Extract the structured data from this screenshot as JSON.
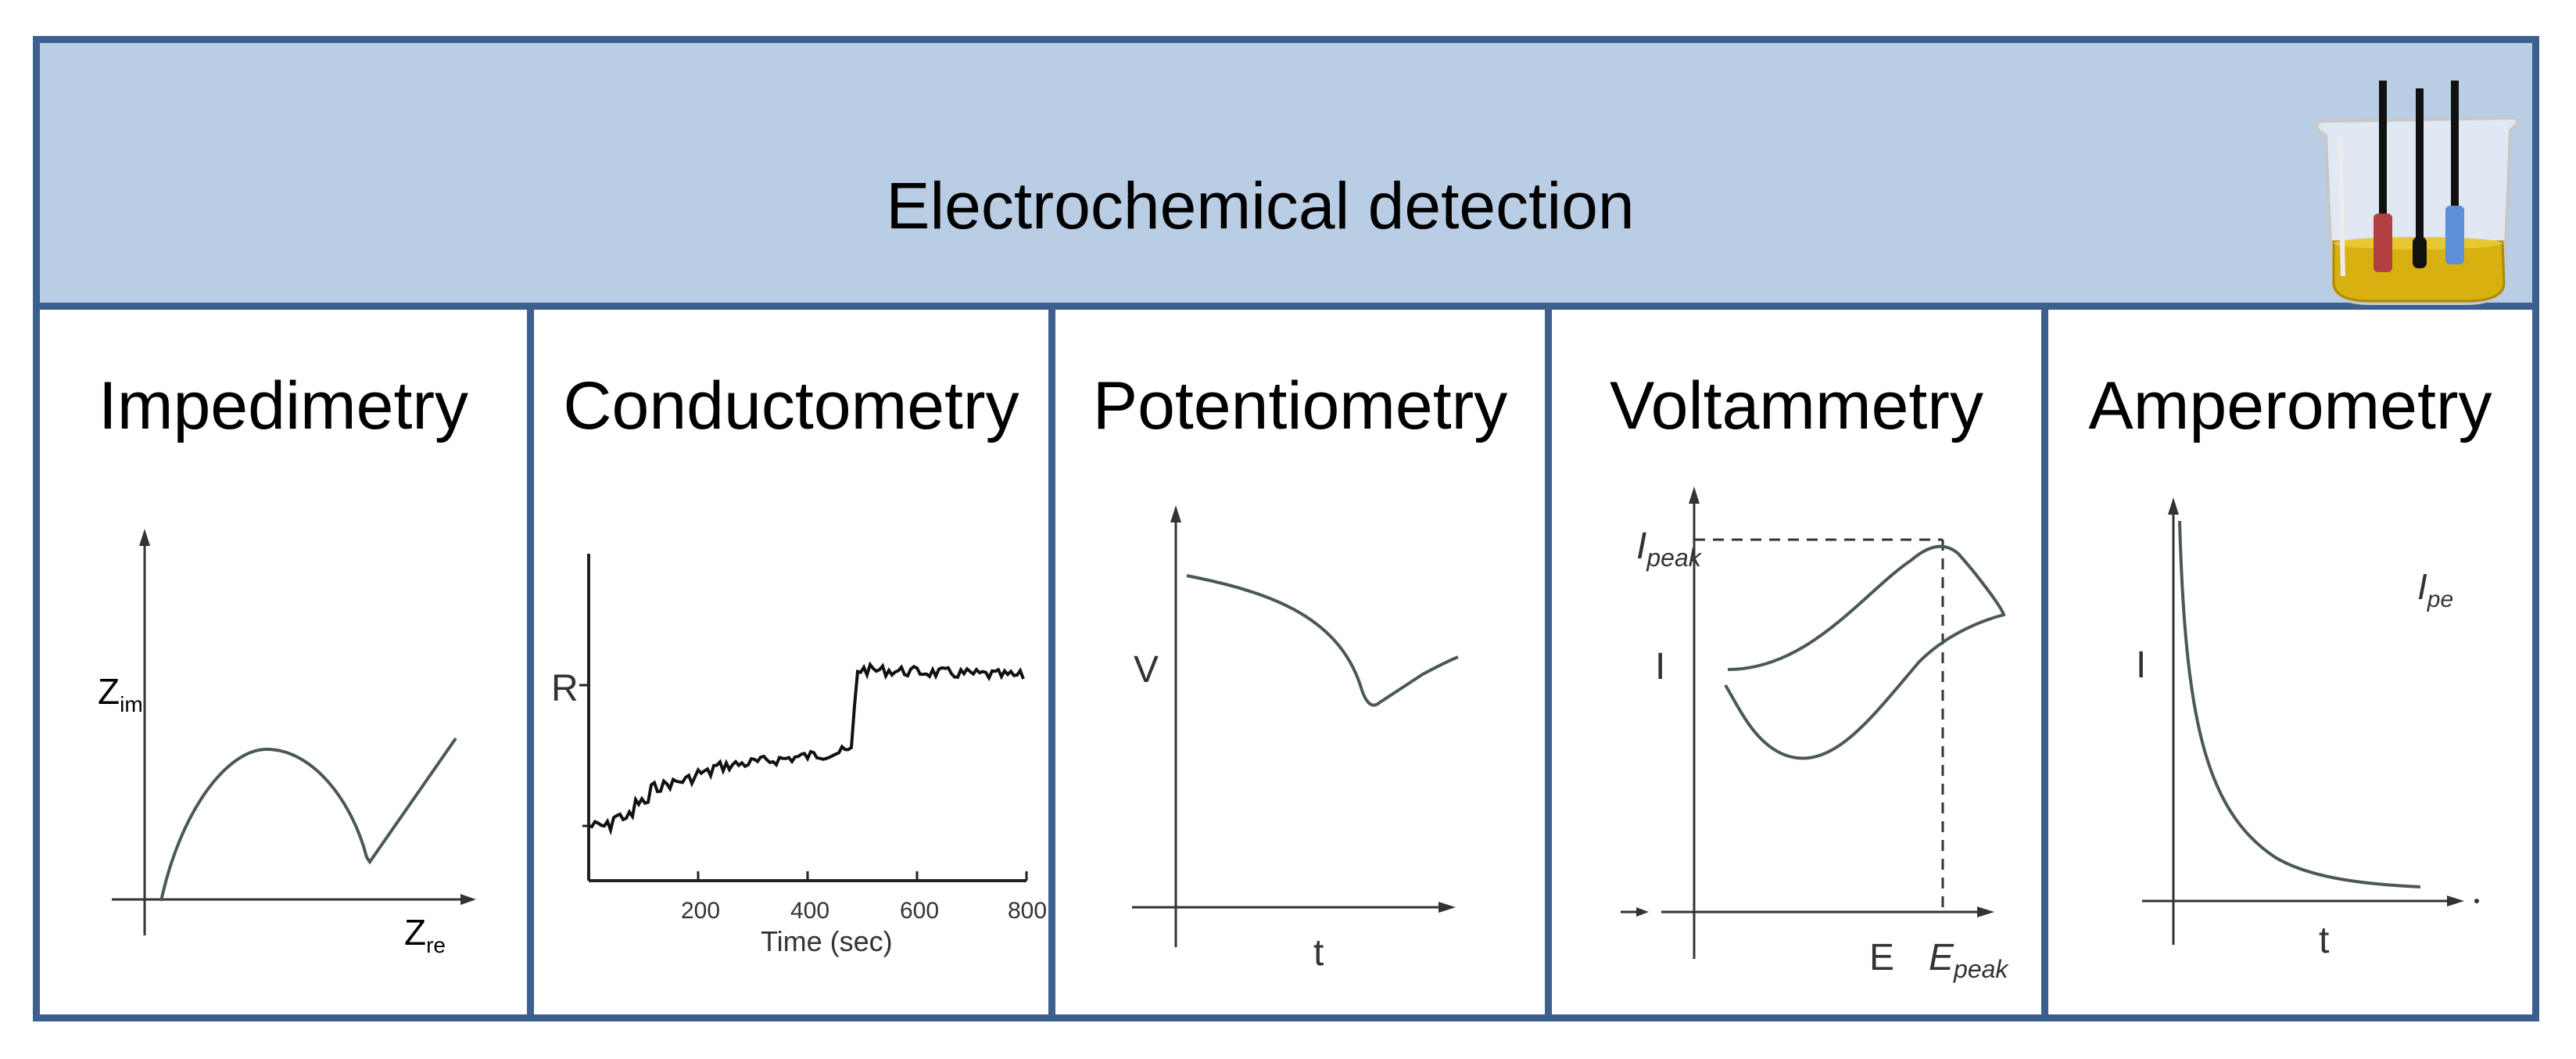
{
  "header": {
    "title": "Electrochemical detection"
  },
  "panels": [
    {
      "title": "Impedimetry",
      "ylabel": "Z",
      "ylabel_sub": "im",
      "xlabel": "Z",
      "xlabel_sub": "re"
    },
    {
      "title": "Conductometry",
      "ylabel": "R",
      "xlabel": "Time (sec)",
      "ticks": [
        "200",
        "400",
        "600",
        "800"
      ]
    },
    {
      "title": "Potentiometry",
      "ylabel": "V",
      "xlabel": "t"
    },
    {
      "title": "Voltammetry",
      "ylabel_peak": "I",
      "ylabel_peak_sub": "peak",
      "ylabel": "I",
      "xlabel": "E",
      "xlabel_peak": "E",
      "xlabel_peak_sub": "peak"
    },
    {
      "title": "Amperometry",
      "ylabel": "I",
      "xlabel": "t",
      "corner_label": "I",
      "corner_label_sub": "pe"
    }
  ],
  "colors": {
    "border": "#3b5f8f",
    "header_bg": "#b9cde5",
    "curve": "#4a5a50",
    "axis": "#333333"
  }
}
